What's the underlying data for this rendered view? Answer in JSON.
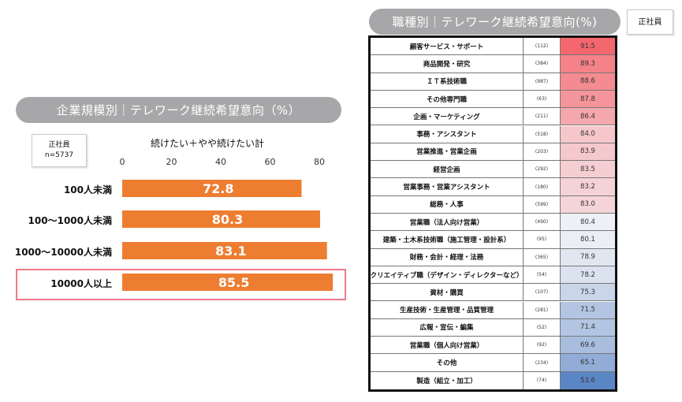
{
  "left": {
    "title": "企業規模別｜テレワーク継続希望意向（%）",
    "tag_line1": "正社員",
    "tag_line2": "n=5737",
    "axis_title": "続けたい＋やや続けたい計"
  },
  "right": {
    "title": "職種別｜テレワーク継続希望意向(%)",
    "tag": "正社員"
  },
  "colors": {
    "bar": "#ed7d31",
    "pill": "#a7a7a9",
    "highlight": "#ee7a89",
    "heat_high": "#f4676e",
    "heat_mid": "#f5f5f8",
    "heat_low": "#5b86c5"
  },
  "chart_data": [
    {
      "type": "bar",
      "orientation": "horizontal",
      "title": "企業規模別｜テレワーク継続希望意向（%）",
      "xlabel": "続けたい＋やや続けたい計",
      "categories": [
        "100人未満",
        "100～1000人未満",
        "1000～10000人未満",
        "10000人以上"
      ],
      "values": [
        72.8,
        80.3,
        83.1,
        85.5
      ],
      "value_labels": [
        "72.8",
        "80.3",
        "83.1",
        "85.5"
      ],
      "xlim": [
        0,
        80
      ],
      "ticks": [
        "0",
        "20",
        "40",
        "60",
        "80"
      ],
      "highlighted": "10000人以上"
    },
    {
      "type": "table",
      "title": "職種別｜テレワーク継続希望意向(%)",
      "rows": [
        {
          "name": "顧客サービス・サポート",
          "n": "(112)",
          "value": "91.5"
        },
        {
          "name": "商品開発・研究",
          "n": "(384)",
          "value": "89.3"
        },
        {
          "name": "ＩＴ系技術職",
          "n": "(987)",
          "value": "88.6"
        },
        {
          "name": "その他専門職",
          "n": "(63)",
          "value": "87.8"
        },
        {
          "name": "企画・マーケティング",
          "n": "(211)",
          "value": "86.4"
        },
        {
          "name": "事務・アシスタント",
          "n": "(518)",
          "value": "84.0"
        },
        {
          "name": "営業推進・営業企画",
          "n": "(203)",
          "value": "83.9"
        },
        {
          "name": "経営企画",
          "n": "(292)",
          "value": "83.5"
        },
        {
          "name": "営業事務・営業アシスタント",
          "n": "(180)",
          "value": "83.2"
        },
        {
          "name": "総務・人事",
          "n": "(599)",
          "value": "83.0"
        },
        {
          "name": "営業職（法人向け営業）",
          "n": "(490)",
          "value": "80.4"
        },
        {
          "name": "建築・土木系技術職（施工管理・設計系）",
          "n": "(95)",
          "value": "80.1"
        },
        {
          "name": "財務・会計・経理・法務",
          "n": "(365)",
          "value": "78.9"
        },
        {
          "name": "クリエイティブ職（デザイン・ディレクターなど）",
          "n": "(54)",
          "value": "78.2"
        },
        {
          "name": "資材・購買",
          "n": "(107)",
          "value": "75.3"
        },
        {
          "name": "生産技術・生産管理・品質管理",
          "n": "(281)",
          "value": "71.5"
        },
        {
          "name": "広報・宣伝・編集",
          "n": "(52)",
          "value": "71.4"
        },
        {
          "name": "営業職（個人向け営業）",
          "n": "(92)",
          "value": "69.6"
        },
        {
          "name": "その他",
          "n": "(234)",
          "value": "65.1"
        },
        {
          "name": "製造（組立・加工）",
          "n": "(74)",
          "value": "53.6"
        }
      ]
    }
  ]
}
